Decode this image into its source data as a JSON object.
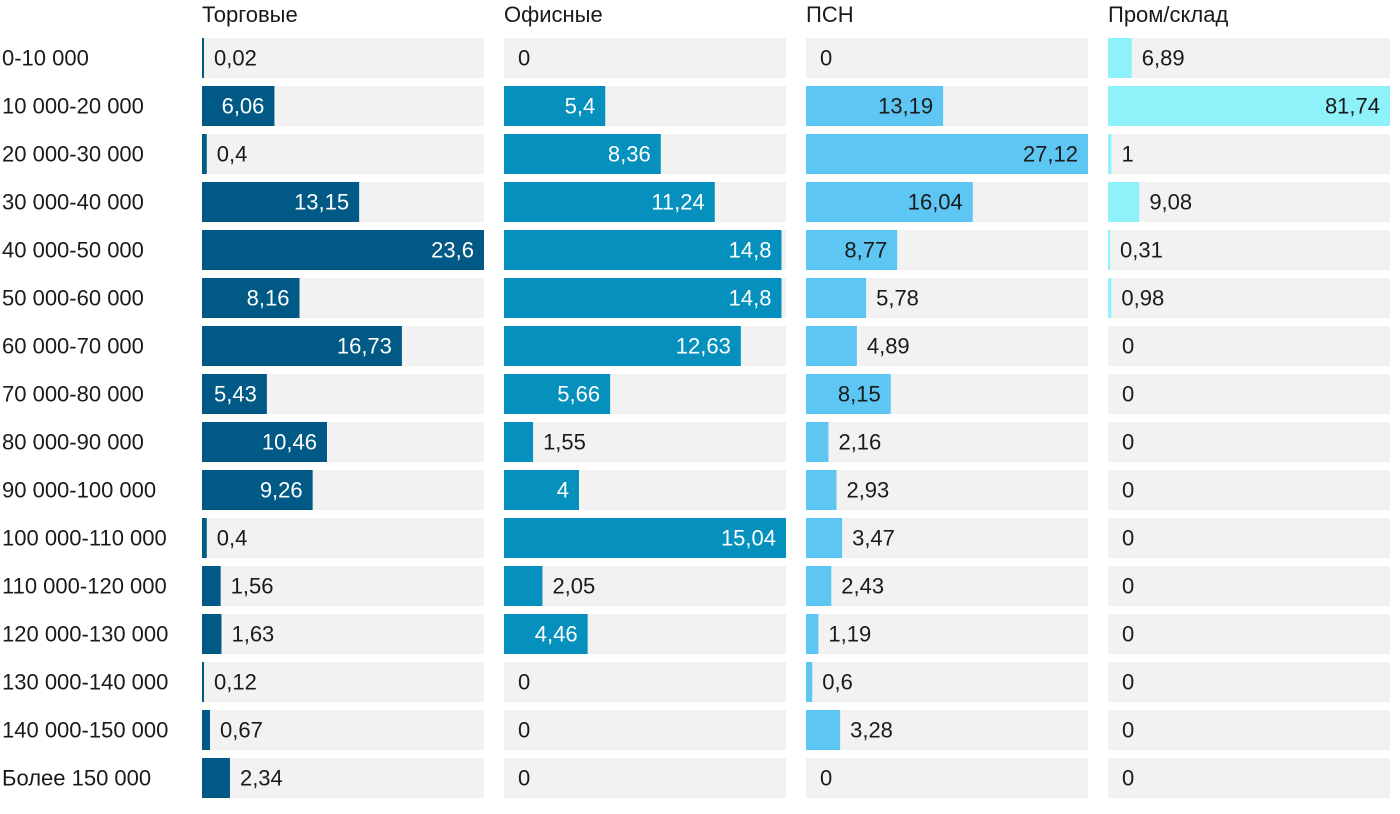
{
  "chart_data": {
    "type": "bar",
    "orientation": "horizontal",
    "layout": "small-multiples",
    "categories": [
      "0-10 000",
      "10 000-20 000",
      "20 000-30 000",
      "30 000-40 000",
      "40 000-50 000",
      "50 000-60 000",
      "60 000-70 000",
      "70 000-80 000",
      "80 000-90 000",
      "90 000-100 000",
      "100 000-110 000",
      "110 000-120 000",
      "120 000-130 000",
      "130 000-140 000",
      "140 000-150 000",
      "Более 150 000"
    ],
    "series": [
      {
        "name": "Торговые",
        "color": "#015a86",
        "values": [
          0.02,
          6.06,
          0.4,
          13.15,
          23.6,
          8.16,
          16.73,
          5.43,
          10.46,
          9.26,
          0.4,
          1.56,
          1.63,
          0.12,
          0.67,
          2.34
        ],
        "labels": [
          "0,02",
          "6,06",
          "0,4",
          "13,15",
          "23,6",
          "8,16",
          "16,73",
          "5,43",
          "10,46",
          "9,26",
          "0,4",
          "1,56",
          "1,63",
          "0,12",
          "0,67",
          "2,34"
        ]
      },
      {
        "name": "Офисные",
        "color": "#0590bd",
        "values": [
          0,
          5.4,
          8.36,
          11.24,
          14.8,
          14.8,
          12.63,
          5.66,
          1.55,
          4,
          15.04,
          2.05,
          4.46,
          0,
          0,
          0
        ],
        "labels": [
          "0",
          "5,4",
          "8,36",
          "11,24",
          "14,8",
          "14,8",
          "12,63",
          "5,66",
          "1,55",
          "4",
          "15,04",
          "2,05",
          "4,46",
          "0",
          "0",
          "0"
        ]
      },
      {
        "name": "ПСН",
        "color": "#5dc6f2",
        "values": [
          0,
          13.19,
          27.12,
          16.04,
          8.77,
          5.78,
          4.89,
          8.15,
          2.16,
          2.93,
          3.47,
          2.43,
          1.19,
          0.6,
          3.28,
          0
        ],
        "labels": [
          "0",
          "13,19",
          "27,12",
          "16,04",
          "8,77",
          "5,78",
          "4,89",
          "8,15",
          "2,16",
          "2,93",
          "3,47",
          "2,43",
          "1,19",
          "0,6",
          "3,28",
          "0"
        ]
      },
      {
        "name": "Пром/склад",
        "color": "#8ef2fb",
        "values": [
          6.89,
          81.74,
          1,
          9.08,
          0.31,
          0.98,
          0,
          0,
          0,
          0,
          0,
          0,
          0,
          0,
          0,
          0
        ],
        "labels": [
          "6,89",
          "81,74",
          "1",
          "9,08",
          "0,31",
          "0,98",
          "0",
          "0",
          "0",
          "0",
          "0",
          "0",
          "0",
          "0",
          "0",
          "0"
        ]
      }
    ],
    "panel_max": [
      23.6,
      15.04,
      27.12,
      81.74
    ],
    "track_color": "#f2f2f2",
    "grid": false,
    "legend": "none"
  }
}
